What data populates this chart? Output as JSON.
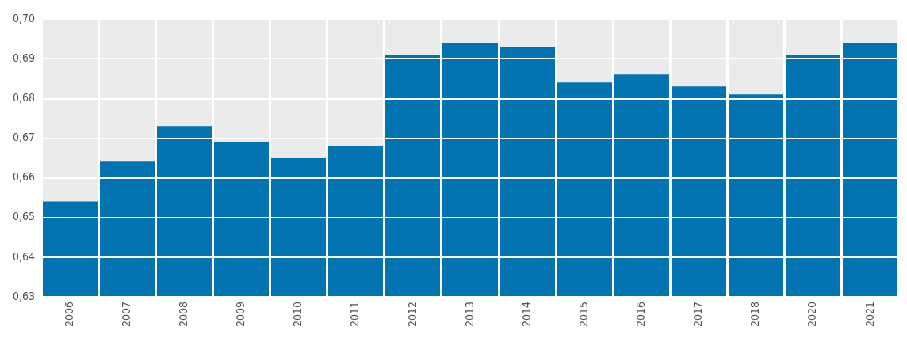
{
  "chart_data": {
    "type": "bar",
    "categories": [
      "2006",
      "2007",
      "2008",
      "2009",
      "2010",
      "2011",
      "2012",
      "2013",
      "2014",
      "2015",
      "2016",
      "2017",
      "2018",
      "2020",
      "2021"
    ],
    "values": [
      0.654,
      0.664,
      0.673,
      0.669,
      0.665,
      0.668,
      0.691,
      0.694,
      0.693,
      0.684,
      0.686,
      0.683,
      0.681,
      0.691,
      0.694
    ],
    "color": "#0073b0",
    "ylim": [
      0.63,
      0.7
    ],
    "yticks": [
      {
        "value": 0.63,
        "label": "0,63"
      },
      {
        "value": 0.64,
        "label": "0,64"
      },
      {
        "value": 0.65,
        "label": "0,65"
      },
      {
        "value": 0.66,
        "label": "0,66"
      },
      {
        "value": 0.67,
        "label": "0,67"
      },
      {
        "value": 0.68,
        "label": "0,68"
      },
      {
        "value": 0.69,
        "label": "0,69"
      },
      {
        "value": 0.7,
        "label": "0,70"
      }
    ],
    "grid": true,
    "legend": false
  }
}
